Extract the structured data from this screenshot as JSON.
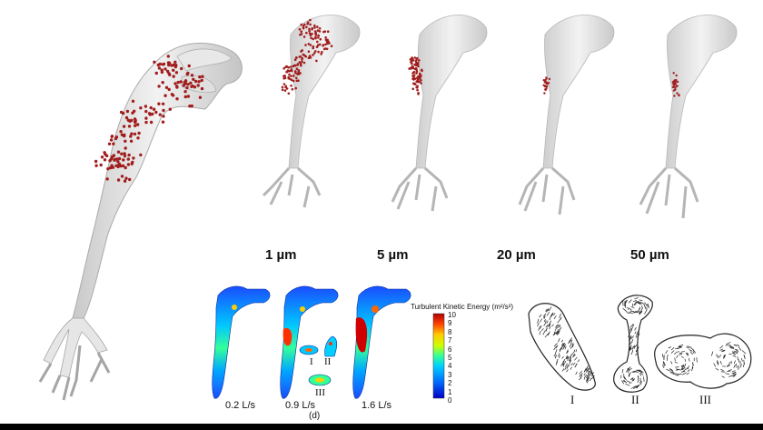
{
  "particle_sizes": [
    "1 µm",
    "5 µm",
    "20 µm",
    "50 µm"
  ],
  "flow_rates": [
    "0.2 L/s",
    "0.9 L/s",
    "1.6 L/s"
  ],
  "panel_label": "(d)",
  "colorbar": {
    "title": "Turbulent Kinetic Energy (m²/s²)",
    "ticks": [
      "10",
      "9",
      "8",
      "7",
      "6",
      "5",
      "4",
      "3",
      "2",
      "1",
      "0"
    ],
    "colors": [
      "#b40000",
      "#ff3b00",
      "#ffb000",
      "#e6ff00",
      "#66ff33",
      "#00e6a0",
      "#00b4ff",
      "#0050ff",
      "#0000c8"
    ]
  },
  "section_labels": {
    "small": [
      "I",
      "II",
      "III"
    ],
    "vector": [
      "I",
      "II",
      "III"
    ]
  },
  "colors": {
    "particle": "#a11d1d",
    "airway": "#d9d9d9",
    "airway_stroke": "#a9a9a9"
  }
}
